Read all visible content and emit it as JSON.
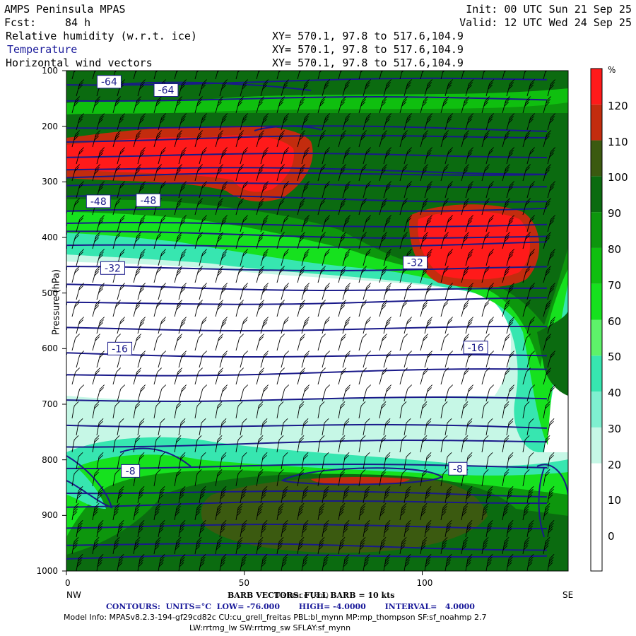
{
  "header": {
    "model": "AMPS Peninsula MPAS",
    "fcst_label": "Fcst:",
    "fcst_value": "84 h",
    "init": "Init: 00 UTC Sun 21 Sep 25",
    "valid": "Valid: 12 UTC Wed 24 Sep 25",
    "fields": [
      {
        "name": "Relative humidity (w.r.t. ice)",
        "xy": "XY= 570.1, 97.8 to 517.6,104.9"
      },
      {
        "name": "Temperature",
        "xy": "XY= 570.1, 97.8 to 517.6,104.9"
      },
      {
        "name": "Horizontal wind vectors",
        "xy": "XY= 570.1, 97.8 to 517.6,104.9"
      }
    ]
  },
  "footer": {
    "barb": "BARB VECTORS: FULL BARB = 10 kts",
    "xlabel_overlap": "Distance (km)",
    "contours": "CONTOURS:  UNITS=°C  LOW= -76.000       HIGH= -4.0000       INTERVAL=   4.0000",
    "model_info_1": "Model Info: MPASv8.2.3-194-gf29cd82c CU:cu_grell_freitas PBL:bl_mynn MP:mp_thompson SF:sf_noahmp 2.7",
    "model_info_2": "LW:rrtmg_lw SW:rrtmg_sw SFLAY:sf_mynn"
  },
  "colors": {
    "white": "#ffffff",
    "c30": "#c6f7e6",
    "c40": "#7ff0d0",
    "c50": "#37e6b0",
    "c60": "#5ef26a",
    "c70": "#16e11e",
    "c80": "#0fbf0f",
    "c90": "#0d960d",
    "c100": "#0b6b10",
    "c110": "#3b5a10",
    "c120": "#c32c0e",
    "c130": "#ff1a1a",
    "contour": "#1a1a8a"
  },
  "chart_data": {
    "type": "heatmap",
    "xlabel": "Distance (km)",
    "ylabel": "Pressure (hPa)",
    "x_ticks": [
      0,
      50,
      100
    ],
    "x_range": [
      0,
      141
    ],
    "x_end_labels": {
      "left": "NW",
      "right": "SE"
    },
    "y_ticks": [
      100,
      200,
      300,
      400,
      500,
      600,
      700,
      800,
      900,
      1000
    ],
    "y_range": [
      100,
      1000
    ],
    "colorbar": {
      "unit": "%",
      "levels": [
        0,
        10,
        20,
        30,
        40,
        50,
        60,
        70,
        80,
        90,
        100,
        110,
        120
      ],
      "colors": [
        "#ffffff",
        "#ffffff",
        "#ffffff",
        "#c6f7e6",
        "#7ff0d0",
        "#37e6b0",
        "#5ef26a",
        "#16e11e",
        "#0fbf0f",
        "#0d960d",
        "#0b6b10",
        "#3b5a10",
        "#c32c0e",
        "#ff1a1a"
      ]
    },
    "temperature_labels": [
      {
        "text": "-64",
        "x": 12,
        "p": 120
      },
      {
        "text": "-64",
        "x": 28,
        "p": 135
      },
      {
        "text": "-48",
        "x": 9,
        "p": 335
      },
      {
        "text": "-48",
        "x": 23,
        "p": 333
      },
      {
        "text": "-32",
        "x": 13,
        "p": 455
      },
      {
        "text": "-32",
        "x": 98,
        "p": 445
      },
      {
        "text": "-16",
        "x": 15,
        "p": 600
      },
      {
        "text": "-16",
        "x": 115,
        "p": 598
      },
      {
        "text": "-8",
        "x": 18,
        "p": 820
      },
      {
        "text": "-8",
        "x": 110,
        "p": 816
      }
    ],
    "temperature_contours": {
      "units": "°C",
      "low": -76,
      "high": -4,
      "interval": 4
    }
  }
}
